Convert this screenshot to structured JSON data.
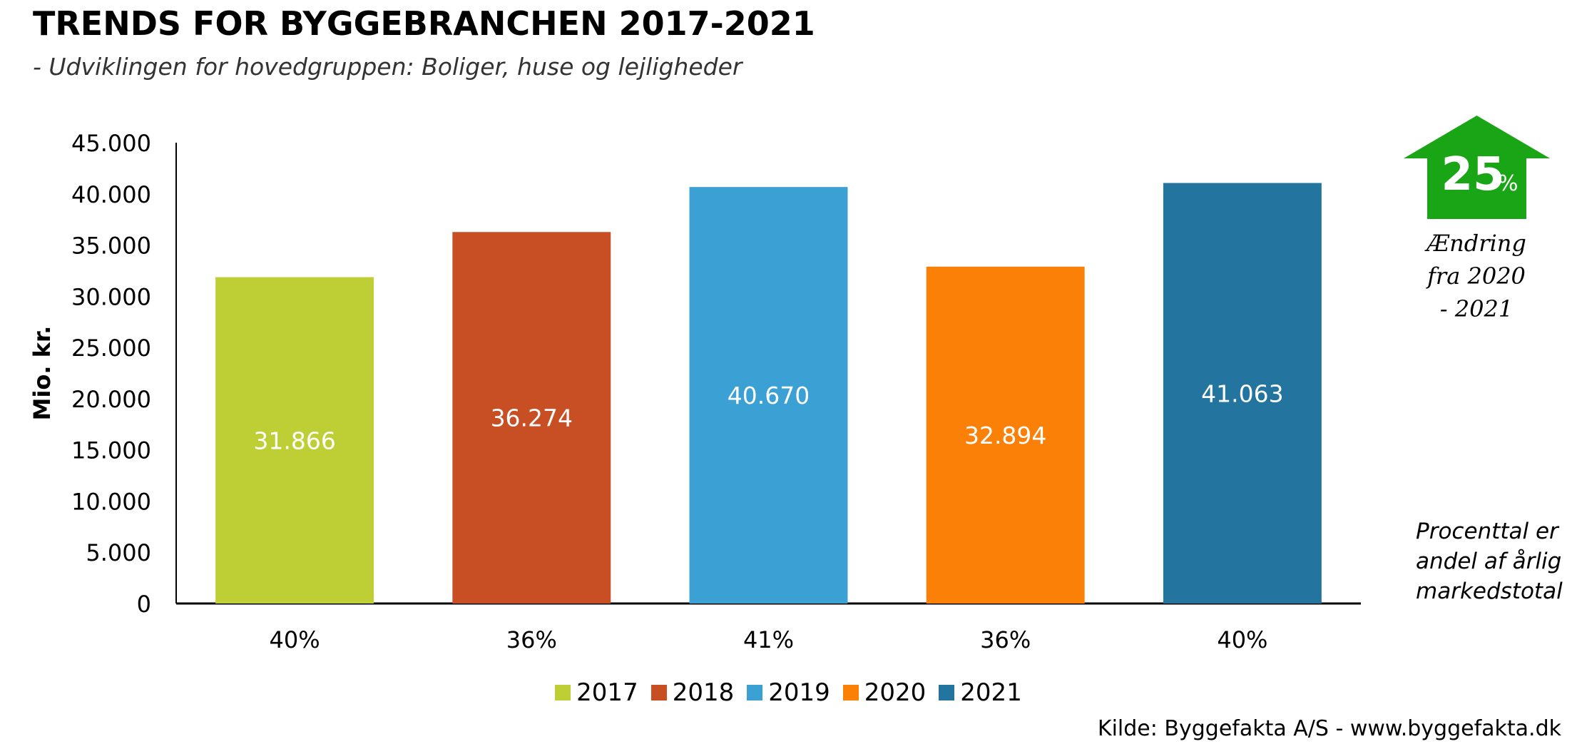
{
  "title": "TRENDS FOR BYGGEBRANCHEN 2017-2021",
  "subtitle": "- Udviklingen for hovedgruppen: Boliger, huse og lejligheder",
  "source": "Kilde: Byggefakta A/S - www.byggefakta.dk",
  "badge": {
    "value": "25",
    "unit": "%",
    "color": "#1aa517"
  },
  "change_note": "Ændring\nfra 2020\n- 2021",
  "pct_note": "Procenttal er\nandel af årlig\nmarkedstotal",
  "chart_data": {
    "type": "bar",
    "ylabel": "Mio. kr.",
    "ylim": [
      0,
      45000
    ],
    "yticks": [
      "0",
      "5.000",
      "10.000",
      "15.000",
      "20.000",
      "25.000",
      "30.000",
      "35.000",
      "40.000",
      "45.000"
    ],
    "grid": false,
    "legend_position": "bottom",
    "series": [
      {
        "name": "2017",
        "value": 31866,
        "value_label": "31.866",
        "share": "40%",
        "color": "#bdcf34"
      },
      {
        "name": "2018",
        "value": 36274,
        "value_label": "36.274",
        "share": "36%",
        "color": "#c84f24"
      },
      {
        "name": "2019",
        "value": 40670,
        "value_label": "40.670",
        "share": "41%",
        "color": "#3ba0d3"
      },
      {
        "name": "2020",
        "value": 32894,
        "value_label": "32.894",
        "share": "36%",
        "color": "#fb8007"
      },
      {
        "name": "2021",
        "value": 41063,
        "value_label": "41.063",
        "share": "40%",
        "color": "#23759f"
      }
    ]
  }
}
